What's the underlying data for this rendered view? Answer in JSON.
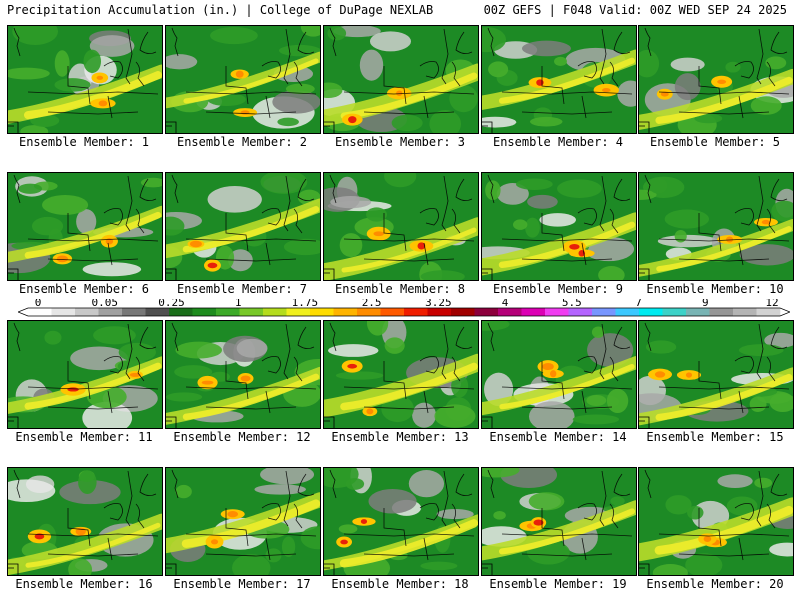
{
  "header": {
    "title": "Precipitation Accumulation (in.) | College of DuPage NEXLAB",
    "run_info": "00Z GEFS | F048 Valid: 00Z WED SEP 24 2025"
  },
  "members": [
    {
      "label": "Ensemble Member: 1"
    },
    {
      "label": "Ensemble Member: 2"
    },
    {
      "label": "Ensemble Member: 3"
    },
    {
      "label": "Ensemble Member: 4"
    },
    {
      "label": "Ensemble Member: 5"
    },
    {
      "label": "Ensemble Member: 6"
    },
    {
      "label": "Ensemble Member: 7"
    },
    {
      "label": "Ensemble Member: 8"
    },
    {
      "label": "Ensemble Member: 9"
    },
    {
      "label": "Ensemble Member: 10"
    },
    {
      "label": "Ensemble Member: 11"
    },
    {
      "label": "Ensemble Member: 12"
    },
    {
      "label": "Ensemble Member: 13"
    },
    {
      "label": "Ensemble Member: 14"
    },
    {
      "label": "Ensemble Member: 15"
    },
    {
      "label": "Ensemble Member: 16"
    },
    {
      "label": "Ensemble Member: 17"
    },
    {
      "label": "Ensemble Member: 18"
    },
    {
      "label": "Ensemble Member: 19"
    },
    {
      "label": "Ensemble Member: 20"
    }
  ],
  "colorbar": {
    "tick_labels": [
      "0",
      "0.05",
      "0.25",
      "1",
      "1.75",
      "2.5",
      "3.25",
      "4",
      "5.5",
      "7",
      "9",
      "12"
    ],
    "colors": [
      "#ffffff",
      "#e6e6e6",
      "#c8c8c8",
      "#a0a0a0",
      "#787878",
      "#505050",
      "#1a6e1a",
      "#1e8c1e",
      "#3caa28",
      "#78c828",
      "#b4dc1e",
      "#f0f01e",
      "#ffdc00",
      "#ffb400",
      "#ff8c00",
      "#ff5a00",
      "#f01e00",
      "#c80000",
      "#a00000",
      "#8c003c",
      "#b40078",
      "#dc00b4",
      "#f03cf0",
      "#b464ff",
      "#7896ff",
      "#3cc8ff",
      "#00ebf0",
      "#3cd2c8",
      "#78b4b4",
      "#969696",
      "#b4b4b4",
      "#d2d2d2"
    ]
  }
}
